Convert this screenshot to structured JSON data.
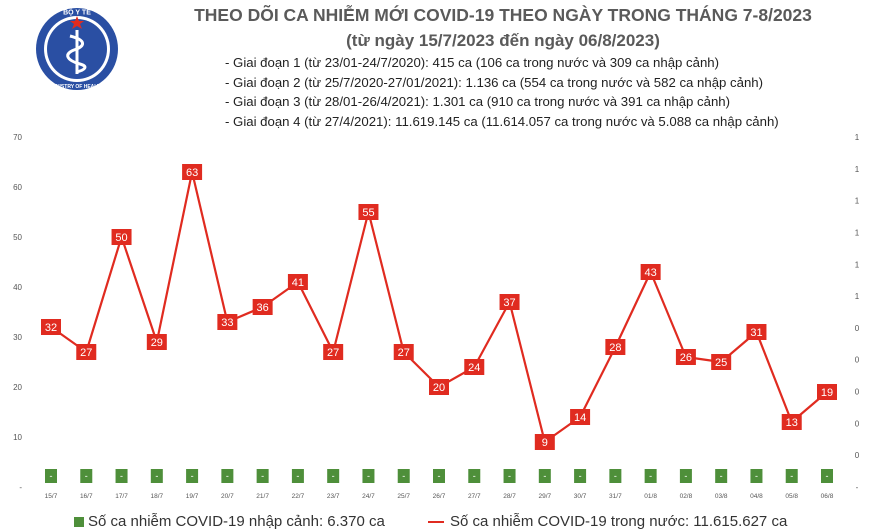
{
  "header": {
    "title": "THEO DÕI CA NHIỄM MỚI COVID-19 THEO NGÀY TRONG THÁNG 7-8/2023",
    "subtitle": "(từ ngày 15/7/2023 đến ngày 06/8/2023)",
    "logo_text_top": "BỘ Y TẾ",
    "logo_text_bottom": "MINISTRY OF HEALTH",
    "logo_icon": "caduceus-icon",
    "notes": [
      "- Giai đoạn 1 (từ 23/01-24/7/2020): 415 ca (106 ca trong nước và 309 ca nhập cảnh)",
      "- Giai đoạn 2 (từ 25/7/2020-27/01/2021): 1.136 ca (554 ca trong nước và 582 ca nhập cảnh)",
      "- Giai đoạn 3 (từ 28/01-26/4/2021): 1.301 ca (910 ca trong nước và 391 ca nhập cảnh)",
      "- Giai đoạn 4 (từ 27/4/2021): 11.619.145 ca (11.614.057 ca trong nước và 5.088 ca nhập cảnh)"
    ]
  },
  "chart_data": {
    "type": "line",
    "categories": [
      "15/7",
      "16/7",
      "17/7",
      "18/7",
      "19/7",
      "20/7",
      "21/7",
      "22/7",
      "23/7",
      "24/7",
      "25/7",
      "26/7",
      "27/7",
      "28/7",
      "29/7",
      "30/7",
      "31/7",
      "01/8",
      "02/8",
      "03/8",
      "04/8",
      "05/8",
      "06/8"
    ],
    "series": [
      {
        "name": "Số ca nhiễm COVID-19 nhập cảnh: 6.370 ca",
        "kind": "bar",
        "axis": "right",
        "color": "#4e8f3a",
        "values": [
          0,
          0,
          0,
          0,
          0,
          0,
          0,
          0,
          0,
          0,
          0,
          0,
          0,
          0,
          0,
          0,
          0,
          0,
          0,
          0,
          0,
          0,
          0
        ],
        "labels": [
          "-",
          "-",
          "-",
          "-",
          "-",
          "-",
          "-",
          "-",
          "-",
          "-",
          "-",
          "-",
          "-",
          "-",
          "-",
          "-",
          "-",
          "-",
          "-",
          "-",
          "-",
          "-",
          "-"
        ]
      },
      {
        "name": "Số ca nhiễm COVID-19 trong nước: 11.615.627 ca",
        "kind": "line",
        "axis": "left",
        "color": "#e02b20",
        "values": [
          32,
          27,
          50,
          29,
          63,
          33,
          36,
          41,
          27,
          55,
          27,
          20,
          24,
          37,
          9,
          14,
          28,
          43,
          26,
          25,
          31,
          13,
          19
        ]
      }
    ],
    "y_left": {
      "ticks": [
        "70",
        "60",
        "50",
        "40",
        "30",
        "20",
        "10",
        "-"
      ],
      "ylim": [
        0,
        70
      ]
    },
    "y_right": {
      "ticks": [
        "1",
        "1",
        "1",
        "1",
        "1",
        "1",
        "0",
        "0",
        "0",
        "0",
        "0",
        "-"
      ]
    },
    "grid": false,
    "legend": "bottom"
  }
}
